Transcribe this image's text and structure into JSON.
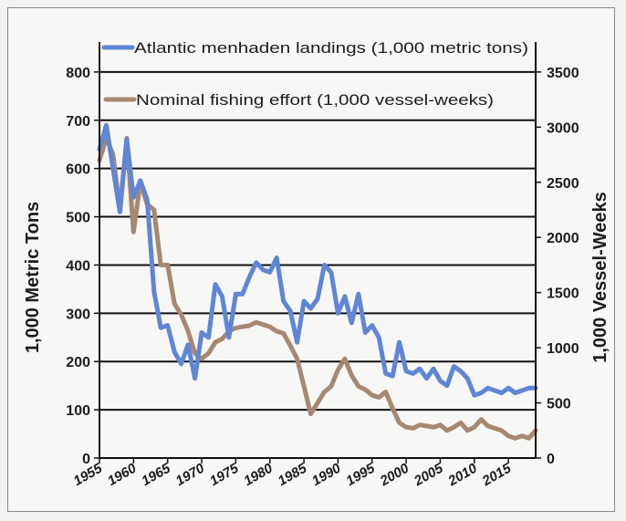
{
  "chart_data": {
    "type": "line",
    "title": "",
    "xlabel": "",
    "ylabel": "1,000 Metric Tons",
    "ylabel_right": "1,000 Vessel-Weeks",
    "xlim": [
      1955,
      2019
    ],
    "ylim": [
      0,
      900
    ],
    "ylim_right": [
      0,
      3937.5
    ],
    "x_ticks": [
      1955,
      1960,
      1965,
      1970,
      1975,
      1980,
      1985,
      1990,
      1995,
      2000,
      2005,
      2010,
      2015
    ],
    "y_ticks_left": [
      0,
      100,
      200,
      300,
      400,
      500,
      600,
      700,
      800
    ],
    "y_ticks_right": [
      0,
      500,
      1000,
      1500,
      2000,
      2500,
      3000,
      3500
    ],
    "grid": "horizontal",
    "legend_position": "top",
    "colors": {
      "landings": "#5f86d6",
      "effort": "#a88770",
      "grid": "#111111",
      "axis": "#111111"
    },
    "series": [
      {
        "name": "Atlantic menhaden landings (1,000  metric tons)",
        "axis": "left",
        "x": [
          1955,
          1956,
          1957,
          1958,
          1959,
          1960,
          1961,
          1962,
          1963,
          1964,
          1965,
          1966,
          1967,
          1968,
          1969,
          1970,
          1971,
          1972,
          1973,
          1974,
          1975,
          1976,
          1977,
          1978,
          1979,
          1980,
          1981,
          1982,
          1983,
          1984,
          1985,
          1986,
          1987,
          1988,
          1989,
          1990,
          1991,
          1992,
          1993,
          1994,
          1995,
          1996,
          1997,
          1998,
          1999,
          2000,
          2001,
          2002,
          2003,
          2004,
          2005,
          2006,
          2007,
          2008,
          2009,
          2010,
          2011,
          2012,
          2013,
          2014,
          2015,
          2016,
          2017,
          2018,
          2019
        ],
        "values": [
          640,
          690,
          600,
          510,
          660,
          540,
          575,
          535,
          345,
          270,
          275,
          220,
          195,
          235,
          165,
          260,
          250,
          360,
          335,
          250,
          340,
          340,
          375,
          405,
          390,
          385,
          415,
          325,
          305,
          240,
          325,
          310,
          330,
          400,
          385,
          300,
          335,
          280,
          340,
          260,
          275,
          250,
          175,
          170,
          240,
          180,
          175,
          185,
          165,
          185,
          160,
          150,
          190,
          180,
          165,
          130,
          135,
          145,
          140,
          135,
          145,
          135,
          140,
          145,
          145
        ]
      },
      {
        "name": "Nominal fishing effort (1,000 vessel-weeks)",
        "axis": "right",
        "x": [
          1955,
          1956,
          1957,
          1958,
          1959,
          1960,
          1961,
          1962,
          1963,
          1964,
          1965,
          1966,
          1967,
          1968,
          1969,
          1970,
          1971,
          1972,
          1973,
          1974,
          1975,
          1976,
          1977,
          1978,
          1979,
          1980,
          1981,
          1982,
          1983,
          1984,
          1985,
          1986,
          1987,
          1988,
          1989,
          1990,
          1991,
          1992,
          1993,
          1994,
          1995,
          1996,
          1997,
          1998,
          1999,
          2000,
          2001,
          2002,
          2003,
          2004,
          2005,
          2006,
          2007,
          2008,
          2009,
          2010,
          2011,
          2012,
          2013,
          2014,
          2015,
          2016,
          2017,
          2018,
          2019
        ],
        "values": [
          2700,
          2900,
          2750,
          2250,
          2900,
          2050,
          2500,
          2300,
          2250,
          1750,
          1750,
          1400,
          1300,
          1150,
          950,
          900,
          950,
          1050,
          1080,
          1150,
          1180,
          1190,
          1200,
          1230,
          1210,
          1190,
          1150,
          1130,
          1020,
          900,
          650,
          400,
          500,
          600,
          650,
          800,
          900,
          750,
          650,
          620,
          570,
          550,
          600,
          450,
          320,
          280,
          270,
          300,
          290,
          280,
          300,
          250,
          280,
          320,
          250,
          280,
          350,
          290,
          270,
          250,
          200,
          180,
          200,
          180,
          250
        ]
      }
    ]
  }
}
